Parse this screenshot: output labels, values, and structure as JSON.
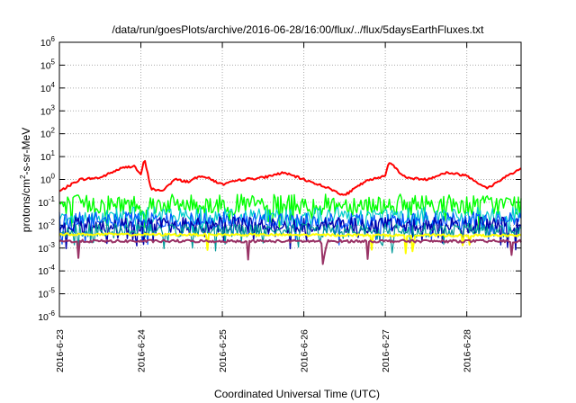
{
  "chart_data": {
    "type": "line",
    "title": "/data/run/goesPlots/archive/2016-06-28/16:00/flux/../flux/5daysEarthFluxes.txt",
    "xlabel": "Coordinated Universal Time (UTC)",
    "ylabel": {
      "base": "protons/cm",
      "sup": "2",
      "rest": "-s-sr-MeV"
    },
    "x_ticks": [
      "2016-6-23",
      "2016-6-24",
      "2016-6-25",
      "2016-6-26",
      "2016-6-27",
      "2016-6-28"
    ],
    "xlim": [
      "2016-06-23T00:00",
      "2016-06-28T16:00"
    ],
    "y_scale": "log",
    "ylim": [
      1e-06,
      1000000.0
    ],
    "y_ticks": [
      {
        "base": "10",
        "exp": "-6"
      },
      {
        "base": "10",
        "exp": "-5"
      },
      {
        "base": "10",
        "exp": "-4"
      },
      {
        "base": "10",
        "exp": "-3"
      },
      {
        "base": "10",
        "exp": "-2"
      },
      {
        "base": "10",
        "exp": "-1"
      },
      {
        "base": "10",
        "exp": "0"
      },
      {
        "base": "10",
        "exp": "1"
      },
      {
        "base": "10",
        "exp": "2"
      },
      {
        "base": "10",
        "exp": "3"
      },
      {
        "base": "10",
        "exp": "4"
      },
      {
        "base": "10",
        "exp": "5"
      },
      {
        "base": "10",
        "exp": "6"
      }
    ],
    "grid": true,
    "series": [
      {
        "color": "#ff0000",
        "width": 2,
        "jitter": 0.05,
        "spike_rate": 0,
        "x": [
          "2016-06-23T00:00",
          "2016-06-23T06:00",
          "2016-06-23T12:00",
          "2016-06-23T18:00",
          "2016-06-23T22:00",
          "2016-06-24T00:00",
          "2016-06-24T01:00",
          "2016-06-24T03:00",
          "2016-06-24T06:00",
          "2016-06-24T10:00",
          "2016-06-24T14:00",
          "2016-06-24T18:00",
          "2016-06-25T00:00",
          "2016-06-25T06:00",
          "2016-06-25T12:00",
          "2016-06-25T18:00",
          "2016-06-26T00:00",
          "2016-06-26T06:00",
          "2016-06-26T12:00",
          "2016-06-26T18:00",
          "2016-06-27T00:00",
          "2016-06-27T01:00",
          "2016-06-27T06:00",
          "2016-06-27T12:00",
          "2016-06-27T18:00",
          "2016-06-28T00:00",
          "2016-06-28T06:00",
          "2016-06-28T12:00",
          "2016-06-28T16:00"
        ],
        "y": [
          0.3,
          1.0,
          1.2,
          3.0,
          4.0,
          1.5,
          8.0,
          0.4,
          0.3,
          1.0,
          0.8,
          1.5,
          0.6,
          1.0,
          1.2,
          2.0,
          1.0,
          0.5,
          0.2,
          0.8,
          1.5,
          6.0,
          1.2,
          1.0,
          2.0,
          1.5,
          0.4,
          1.5,
          3.0
        ]
      },
      {
        "color": "#00ff00",
        "width": 1.4,
        "jitter": 0.45,
        "spike_rate": 0.08,
        "x": [
          "2016-06-23T00:00",
          "2016-06-28T16:00"
        ],
        "y": [
          0.08,
          0.08
        ]
      },
      {
        "color": "#00cccc",
        "width": 1.2,
        "jitter": 0.4,
        "spike_rate": 0.08,
        "x": [
          "2016-06-23T00:00",
          "2016-06-28T16:00"
        ],
        "y": [
          0.025,
          0.025
        ]
      },
      {
        "color": "#0055ff",
        "width": 1.2,
        "jitter": 0.4,
        "spike_rate": 0.1,
        "x": [
          "2016-06-23T00:00",
          "2016-06-28T16:00"
        ],
        "y": [
          0.015,
          0.015
        ]
      },
      {
        "color": "#0000aa",
        "width": 1.4,
        "jitter": 0.35,
        "spike_rate": 0.1,
        "x": [
          "2016-06-23T00:00",
          "2016-06-28T16:00"
        ],
        "y": [
          0.01,
          0.01
        ]
      },
      {
        "color": "#009999",
        "width": 1.2,
        "jitter": 0.3,
        "spike_rate": 0.08,
        "x": [
          "2016-06-23T00:00",
          "2016-06-28T16:00"
        ],
        "y": [
          0.006,
          0.006
        ]
      },
      {
        "color": "#ffff00",
        "width": 2,
        "jitter": 0.05,
        "spike_rate": 0.02,
        "x": [
          "2016-06-23T00:00",
          "2016-06-28T16:00"
        ],
        "y": [
          0.004,
          0.0035
        ]
      },
      {
        "color": "#993366",
        "width": 2,
        "jitter": 0.06,
        "spike_rate": 0.01,
        "x": [
          "2016-06-23T00:00",
          "2016-06-26T05:00",
          "2016-06-26T06:00",
          "2016-06-26T07:00",
          "2016-06-28T16:00"
        ],
        "y": [
          0.002,
          0.002,
          0.0004,
          0.002,
          0.002
        ]
      }
    ]
  }
}
